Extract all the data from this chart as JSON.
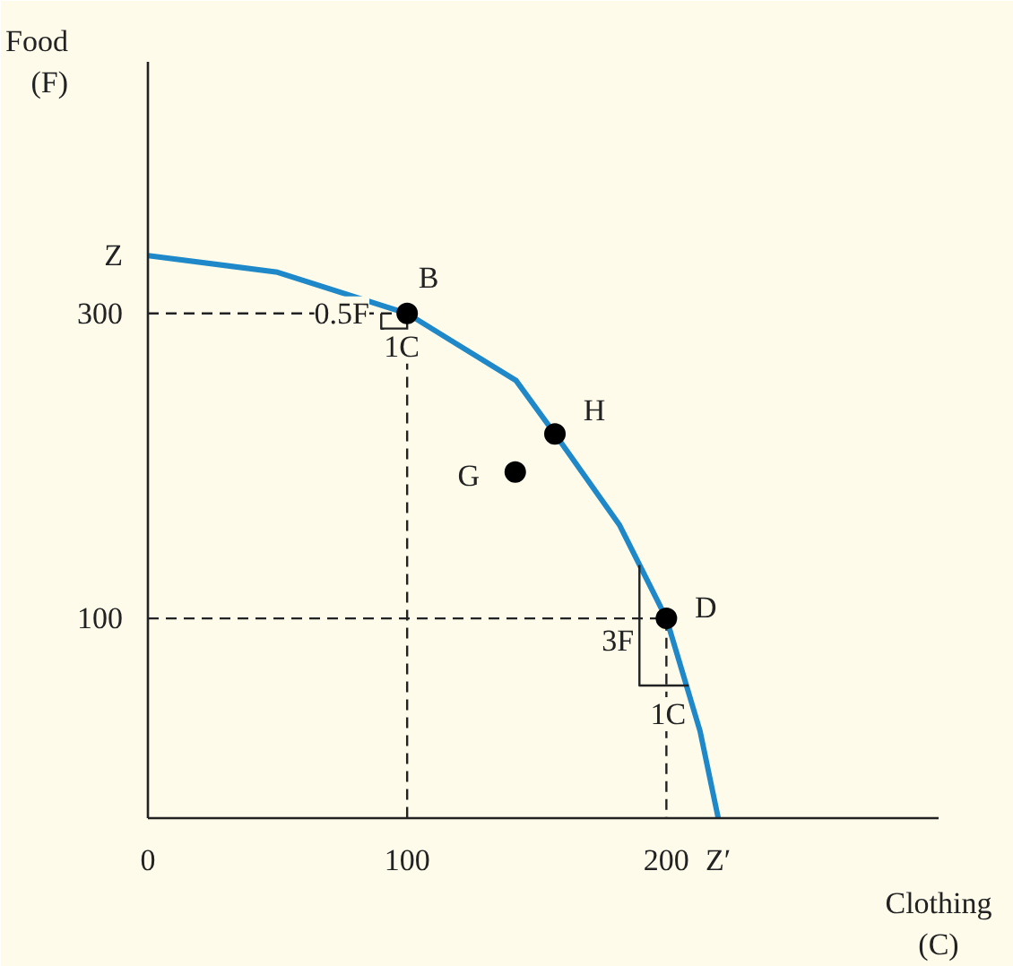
{
  "chart_data": {
    "type": "line",
    "xlabel": "Clothing\n(C)",
    "ylabel": "Food\n(F)",
    "xlim": [
      0,
      305
    ],
    "ylim": [
      -31,
      465
    ],
    "xticks": [
      0,
      100,
      200,
      {
        "value": 220,
        "label": "Z′"
      }
    ],
    "yticks": [
      100,
      300,
      {
        "value": 338,
        "label": "Z"
      }
    ],
    "grid": false,
    "series": [
      {
        "type": "line",
        "color": "#1e88c8",
        "line_style": "solid",
        "x": [
          0,
          50,
          100,
          142,
          157,
          182,
          200,
          213,
          220
        ],
        "values": [
          338,
          327,
          300,
          256,
          221,
          161,
          100,
          26,
          -31
        ]
      },
      {
        "type": "line",
        "color": "#222222",
        "line_style": "dashed",
        "x": [
          0,
          100,
          100
        ],
        "values": [
          300,
          300,
          -31
        ]
      },
      {
        "type": "line",
        "color": "#222222",
        "line_style": "dashed",
        "x": [
          0,
          200,
          200
        ],
        "values": [
          100,
          100,
          -31
        ]
      },
      {
        "type": "line",
        "color": "#222222",
        "line_style": "solid",
        "x": [
          90,
          90,
          100
        ],
        "values": [
          300,
          290,
          290
        ]
      },
      {
        "type": "line",
        "color": "#222222",
        "line_style": "solid",
        "x": [
          189.6,
          189.6,
          208.6
        ],
        "values": [
          135,
          56,
          56
        ]
      },
      {
        "type": "scatter",
        "color": "#000000",
        "marker": "circle",
        "x": [
          100,
          157,
          141.7,
          200
        ],
        "values": [
          300,
          221,
          196,
          100
        ]
      }
    ],
    "annotations": [
      {
        "text": "B",
        "x": 100,
        "y": 300
      },
      {
        "text": "H",
        "x": 157,
        "y": 221
      },
      {
        "text": "G",
        "x": 141.7,
        "y": 196
      },
      {
        "text": "D",
        "x": 200,
        "y": 100
      },
      {
        "text": "0.5F",
        "x": 90,
        "y": 300
      },
      {
        "text": "1C",
        "x": 100,
        "y": 290
      },
      {
        "text": "3F",
        "x": 189.6,
        "y": 95
      },
      {
        "text": "1C",
        "x": 200,
        "y": 56
      }
    ]
  }
}
